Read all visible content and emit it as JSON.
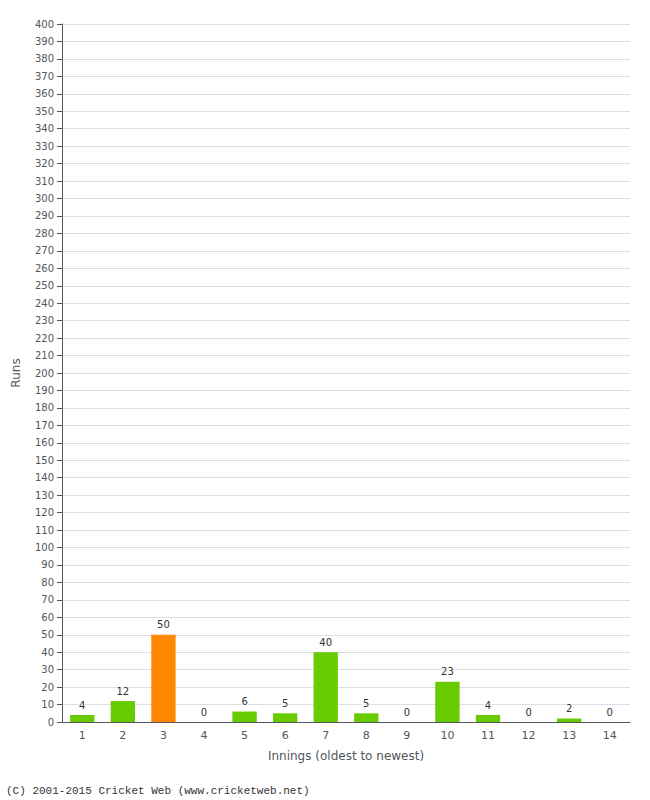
{
  "chart_data": {
    "type": "bar",
    "xlabel": "Innings (oldest to newest)",
    "ylabel": "Runs",
    "annotations": [
      "(C) 2001-2015 Cricket Web (www.cricketweb.net)"
    ],
    "categories": [
      1,
      2,
      3,
      4,
      5,
      6,
      7,
      8,
      9,
      10,
      11,
      12,
      13,
      14
    ],
    "values": [
      4,
      12,
      50,
      0,
      6,
      5,
      40,
      5,
      0,
      23,
      4,
      0,
      2,
      0
    ],
    "colors": [
      "#66cc00",
      "#66cc00",
      "#ff8800",
      "#66cc00",
      "#66cc00",
      "#66cc00",
      "#66cc00",
      "#66cc00",
      "#66cc00",
      "#66cc00",
      "#66cc00",
      "#66cc00",
      "#66cc00",
      "#66cc00"
    ],
    "ylim": [
      0,
      400
    ],
    "yticks": [
      0,
      10,
      20,
      30,
      40,
      50,
      60,
      70,
      80,
      90,
      100,
      110,
      120,
      130,
      140,
      150,
      160,
      170,
      180,
      190,
      200,
      210,
      220,
      230,
      240,
      250,
      260,
      270,
      280,
      290,
      300,
      310,
      320,
      330,
      340,
      350,
      360,
      370,
      380,
      390,
      400
    ],
    "grid": true,
    "data_labels": true
  }
}
